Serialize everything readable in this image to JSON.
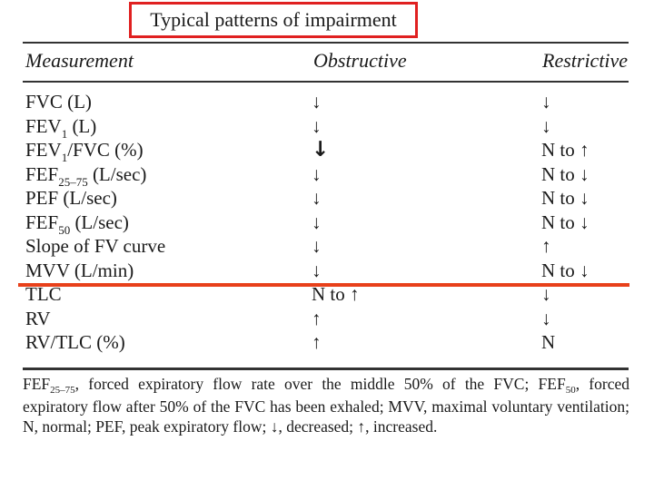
{
  "title": "Typical patterns of impairment",
  "columns": {
    "measurement": "Measurement",
    "obstructive": "Obstructive",
    "restrictive": "Restrictive"
  },
  "rows": [
    {
      "m_main": "FVC (L)",
      "m_sub": "",
      "m_rest": "",
      "obs": "↓",
      "res": "↓"
    },
    {
      "m_main": "FEV",
      "m_sub": "1",
      "m_rest": " (L)",
      "obs": "↓",
      "res": "↓"
    },
    {
      "m_main": "FEV",
      "m_sub": "1",
      "m_rest": "/FVC (%)",
      "obs": "↓",
      "res": "N to ↑"
    },
    {
      "m_main": "FEF",
      "m_sub": "25–75",
      "m_rest": " (L/sec)",
      "obs": "↓",
      "res": "N to ↓"
    },
    {
      "m_main": "PEF (L/sec)",
      "m_sub": "",
      "m_rest": "",
      "obs": "↓",
      "res": "N to ↓"
    },
    {
      "m_main": "FEF",
      "m_sub": "50",
      "m_rest": " (L/sec)",
      "obs": "↓",
      "res": "N to ↓"
    },
    {
      "m_main": "Slope of FV curve",
      "m_sub": "",
      "m_rest": "",
      "obs": "↓",
      "res": "↑"
    },
    {
      "m_main": "MVV (L/min)",
      "m_sub": "",
      "m_rest": "",
      "obs": "↓",
      "res": "N to ↓"
    },
    {
      "m_main": "TLC",
      "m_sub": "",
      "m_rest": "",
      "obs": "N to ↑",
      "res": "↓"
    },
    {
      "m_main": "RV",
      "m_sub": "",
      "m_rest": "",
      "obs": "↑",
      "res": "↓"
    },
    {
      "m_main": "RV/TLC (%)",
      "m_sub": "",
      "m_rest": "",
      "obs": "↑",
      "res": "N"
    }
  ],
  "footnote": {
    "p1": "FEF",
    "s1": "25–75",
    "p2": ", forced expiratory flow rate over the middle 50% of the FVC; FEF",
    "s2": "50",
    "p3": ", forced expiratory flow after 50% of the FVC has been exhaled; MVV, maximal voluntary ventilation; N, normal; PEF, peak expiratory flow; ↓, decreased; ↑, increased."
  },
  "colors": {
    "highlight": "#e02020",
    "divider": "#e8401a",
    "text": "#1a1a1a"
  }
}
